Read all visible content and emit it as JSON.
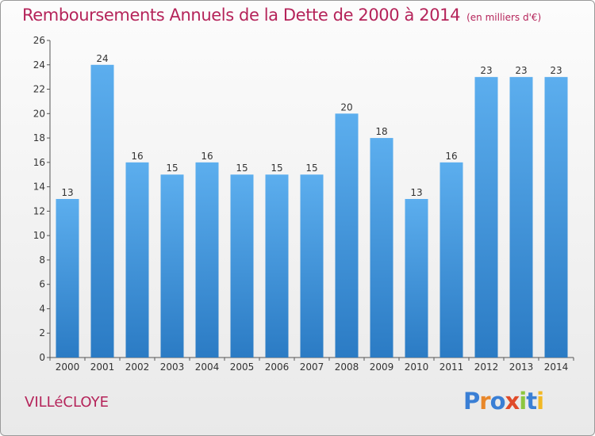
{
  "chart_data": {
    "type": "bar",
    "title": "Remboursements Annuels de la Dette de 2000 à 2014",
    "unit_label": "(en milliers d'€)",
    "categories": [
      "2000",
      "2001",
      "2002",
      "2003",
      "2004",
      "2005",
      "2006",
      "2007",
      "2008",
      "2009",
      "2010",
      "2011",
      "2012",
      "2013",
      "2014"
    ],
    "values": [
      13,
      24,
      16,
      15,
      16,
      15,
      15,
      15,
      20,
      18,
      13,
      16,
      23,
      23,
      23
    ],
    "ylim": [
      0,
      26
    ],
    "yticks": [
      0,
      2,
      4,
      6,
      8,
      10,
      12,
      14,
      16,
      18,
      20,
      22,
      24,
      26
    ],
    "grid": false,
    "bar_color": "#4d9ee6"
  },
  "footer": {
    "town": "VILLéCLOYE",
    "logo_letters": [
      {
        "ch": "P",
        "color": "#3a7fd5"
      },
      {
        "ch": "r",
        "color": "#e8872a"
      },
      {
        "ch": "o",
        "color": "#3a7fd5"
      },
      {
        "ch": "x",
        "color": "#e04b2a"
      },
      {
        "ch": "i",
        "color": "#8cc63f"
      },
      {
        "ch": "t",
        "color": "#3a7fd5"
      },
      {
        "ch": "i",
        "color": "#f2b824"
      }
    ]
  }
}
